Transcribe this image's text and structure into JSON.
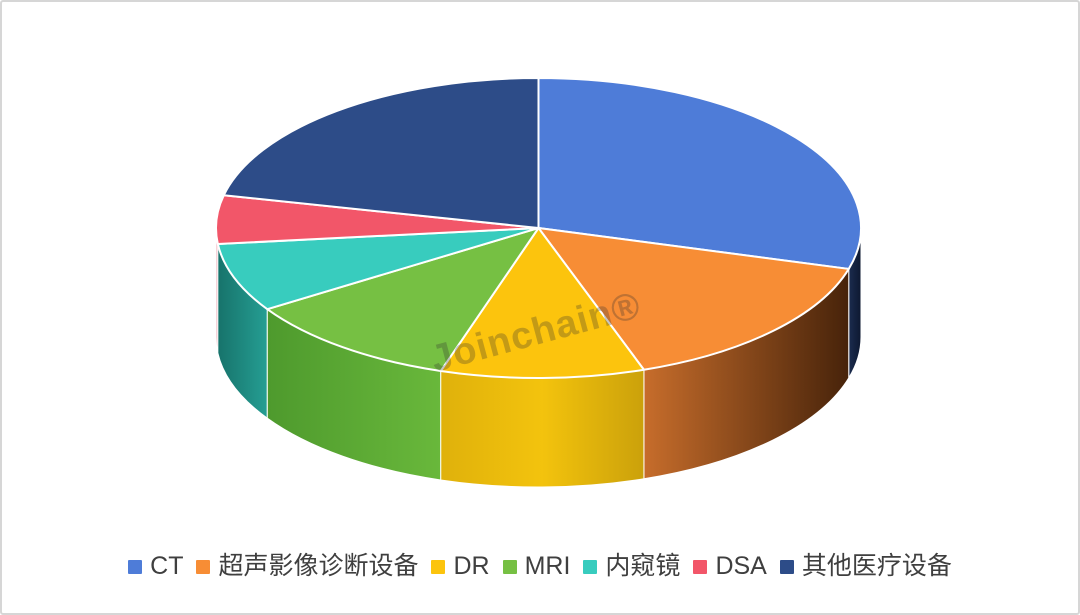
{
  "page": {
    "background": "#ffffff",
    "border_color": "#d6d6d6"
  },
  "watermark": {
    "text": "Joinchain®"
  },
  "chart_data": {
    "type": "pie",
    "style": "3d-pie",
    "title": "",
    "legend_position": "bottom",
    "direction": "clockwise",
    "start_angle": "12-o-clock",
    "unit": "percent (estimated from slice angles, no data labels shown)",
    "labels": [
      "CT",
      "超声影像诊断设备",
      "DR",
      "MRI",
      "内窥镜",
      "DSA",
      "其他医疗设备"
    ],
    "values": [
      29.4,
      15.3,
      10.2,
      11.0,
      7.4,
      5.2,
      21.5
    ],
    "colors": [
      "#4E7CD8",
      "#F78D35",
      "#FCC40D",
      "#76C043",
      "#38CCBE",
      "#F25669",
      "#2D4C88"
    ],
    "side_colors": [
      [
        "#1B2C4F",
        "#0D1830"
      ],
      [
        "#C76D2B",
        "#47230A"
      ],
      [
        "#DFB10C",
        "#F3C30D",
        "#CBA10B"
      ],
      [
        "#4E9A2D",
        "#69B83B"
      ],
      [
        "#17736B",
        "#259E93"
      ],
      [
        "#EFA9B4",
        "#EFA9B4"
      ],
      [
        "#1F355E",
        "#1F355E"
      ]
    ],
    "separator_color": "#ffffff"
  },
  "legend": {
    "text_color": "#3f3f3f"
  }
}
